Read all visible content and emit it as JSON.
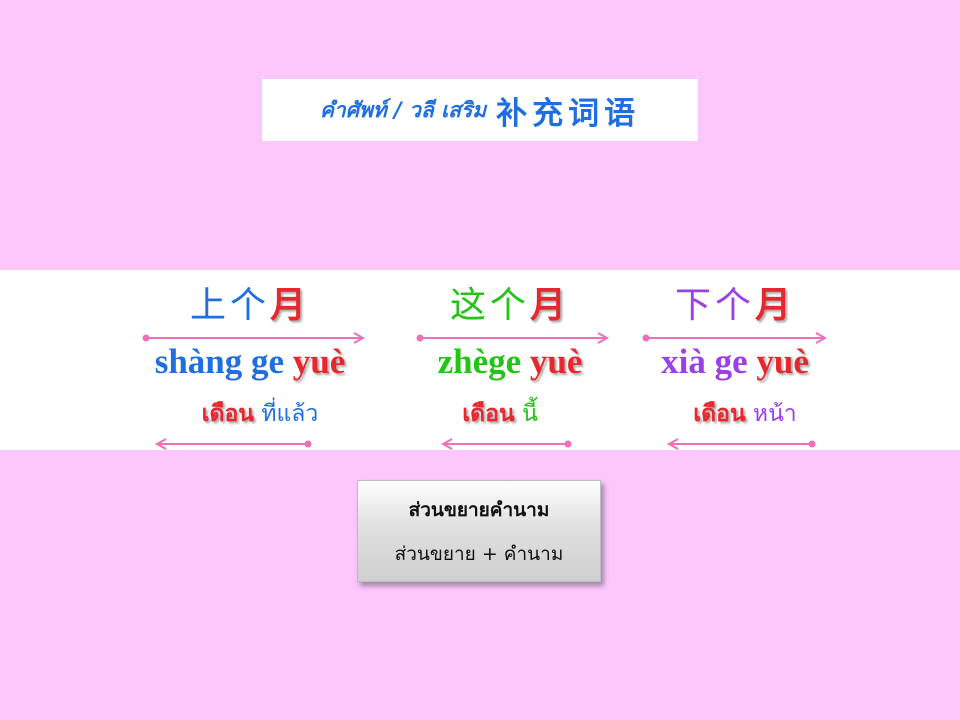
{
  "slide": {
    "title_thai": "คำศัพท์ / วลี เสริม",
    "title_chinese": "补充词语"
  },
  "groups": [
    {
      "hanzi_prefix": "上个",
      "hanzi_month": "月",
      "pinyin_prefix": "shàng ge",
      "pinyin_month": "yuè",
      "thai_month": "เดือน",
      "thai_rest": " ที่แล้ว",
      "color": "#1f6fe0"
    },
    {
      "hanzi_prefix": "这个",
      "hanzi_month": "月",
      "pinyin_prefix": "zhège",
      "pinyin_month": "yuè",
      "thai_month": "เดือน",
      "thai_rest": " นี้",
      "color": "#22c416"
    },
    {
      "hanzi_prefix": "下个",
      "hanzi_month": "月",
      "pinyin_prefix": "xià ge",
      "pinyin_month": "yuè",
      "thai_month": "เดือน",
      "thai_rest": " หน้า",
      "color": "#9b3fe8"
    }
  ],
  "note": {
    "line1": "ส่วนขยายคำนาม",
    "line2": "ส่วนขยาย + คำนาม"
  },
  "colors": {
    "background": "#fcc8fc",
    "month": "#e8262d",
    "arrow": "#f070b8"
  }
}
